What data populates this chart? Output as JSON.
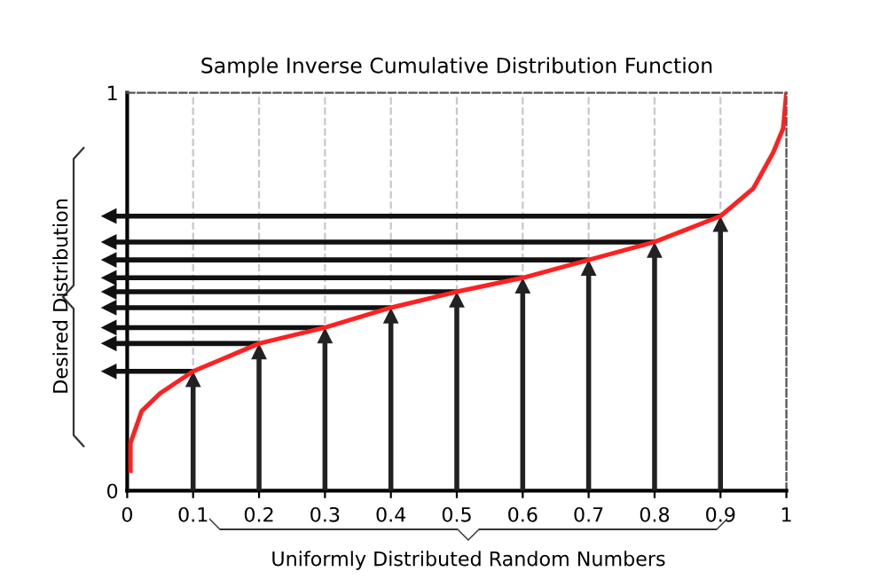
{
  "chart_data": {
    "type": "line",
    "title": "Sample Inverse Cumulative Distribution Function",
    "xlabel": "Uniformly Distributed Random Numbers",
    "ylabel": "Desired Distribution",
    "x": [
      0.005,
      0.005,
      0.022,
      0.05,
      0.1,
      0.2,
      0.3,
      0.4,
      0.5,
      0.6,
      0.7,
      0.8,
      0.9,
      0.95,
      0.98,
      0.995,
      1.0
    ],
    "series": [
      {
        "color": "#ff2020",
        "values": [
          0.05,
          0.12,
          0.2,
          0.245,
          0.3,
          0.37,
          0.41,
          0.46,
          0.5,
          0.535,
          0.58,
          0.625,
          0.69,
          0.76,
          0.85,
          0.91,
          1.0
        ]
      }
    ],
    "xlim": [
      0,
      1
    ],
    "ylim": [
      0,
      1
    ],
    "xticks": [
      0,
      0.1,
      0.2,
      0.3,
      0.4,
      0.5,
      0.6,
      0.7,
      0.8,
      0.9,
      1
    ],
    "yticks": [
      0,
      1
    ],
    "grid": "x",
    "marker": "none",
    "line_style": "solid"
  }
}
